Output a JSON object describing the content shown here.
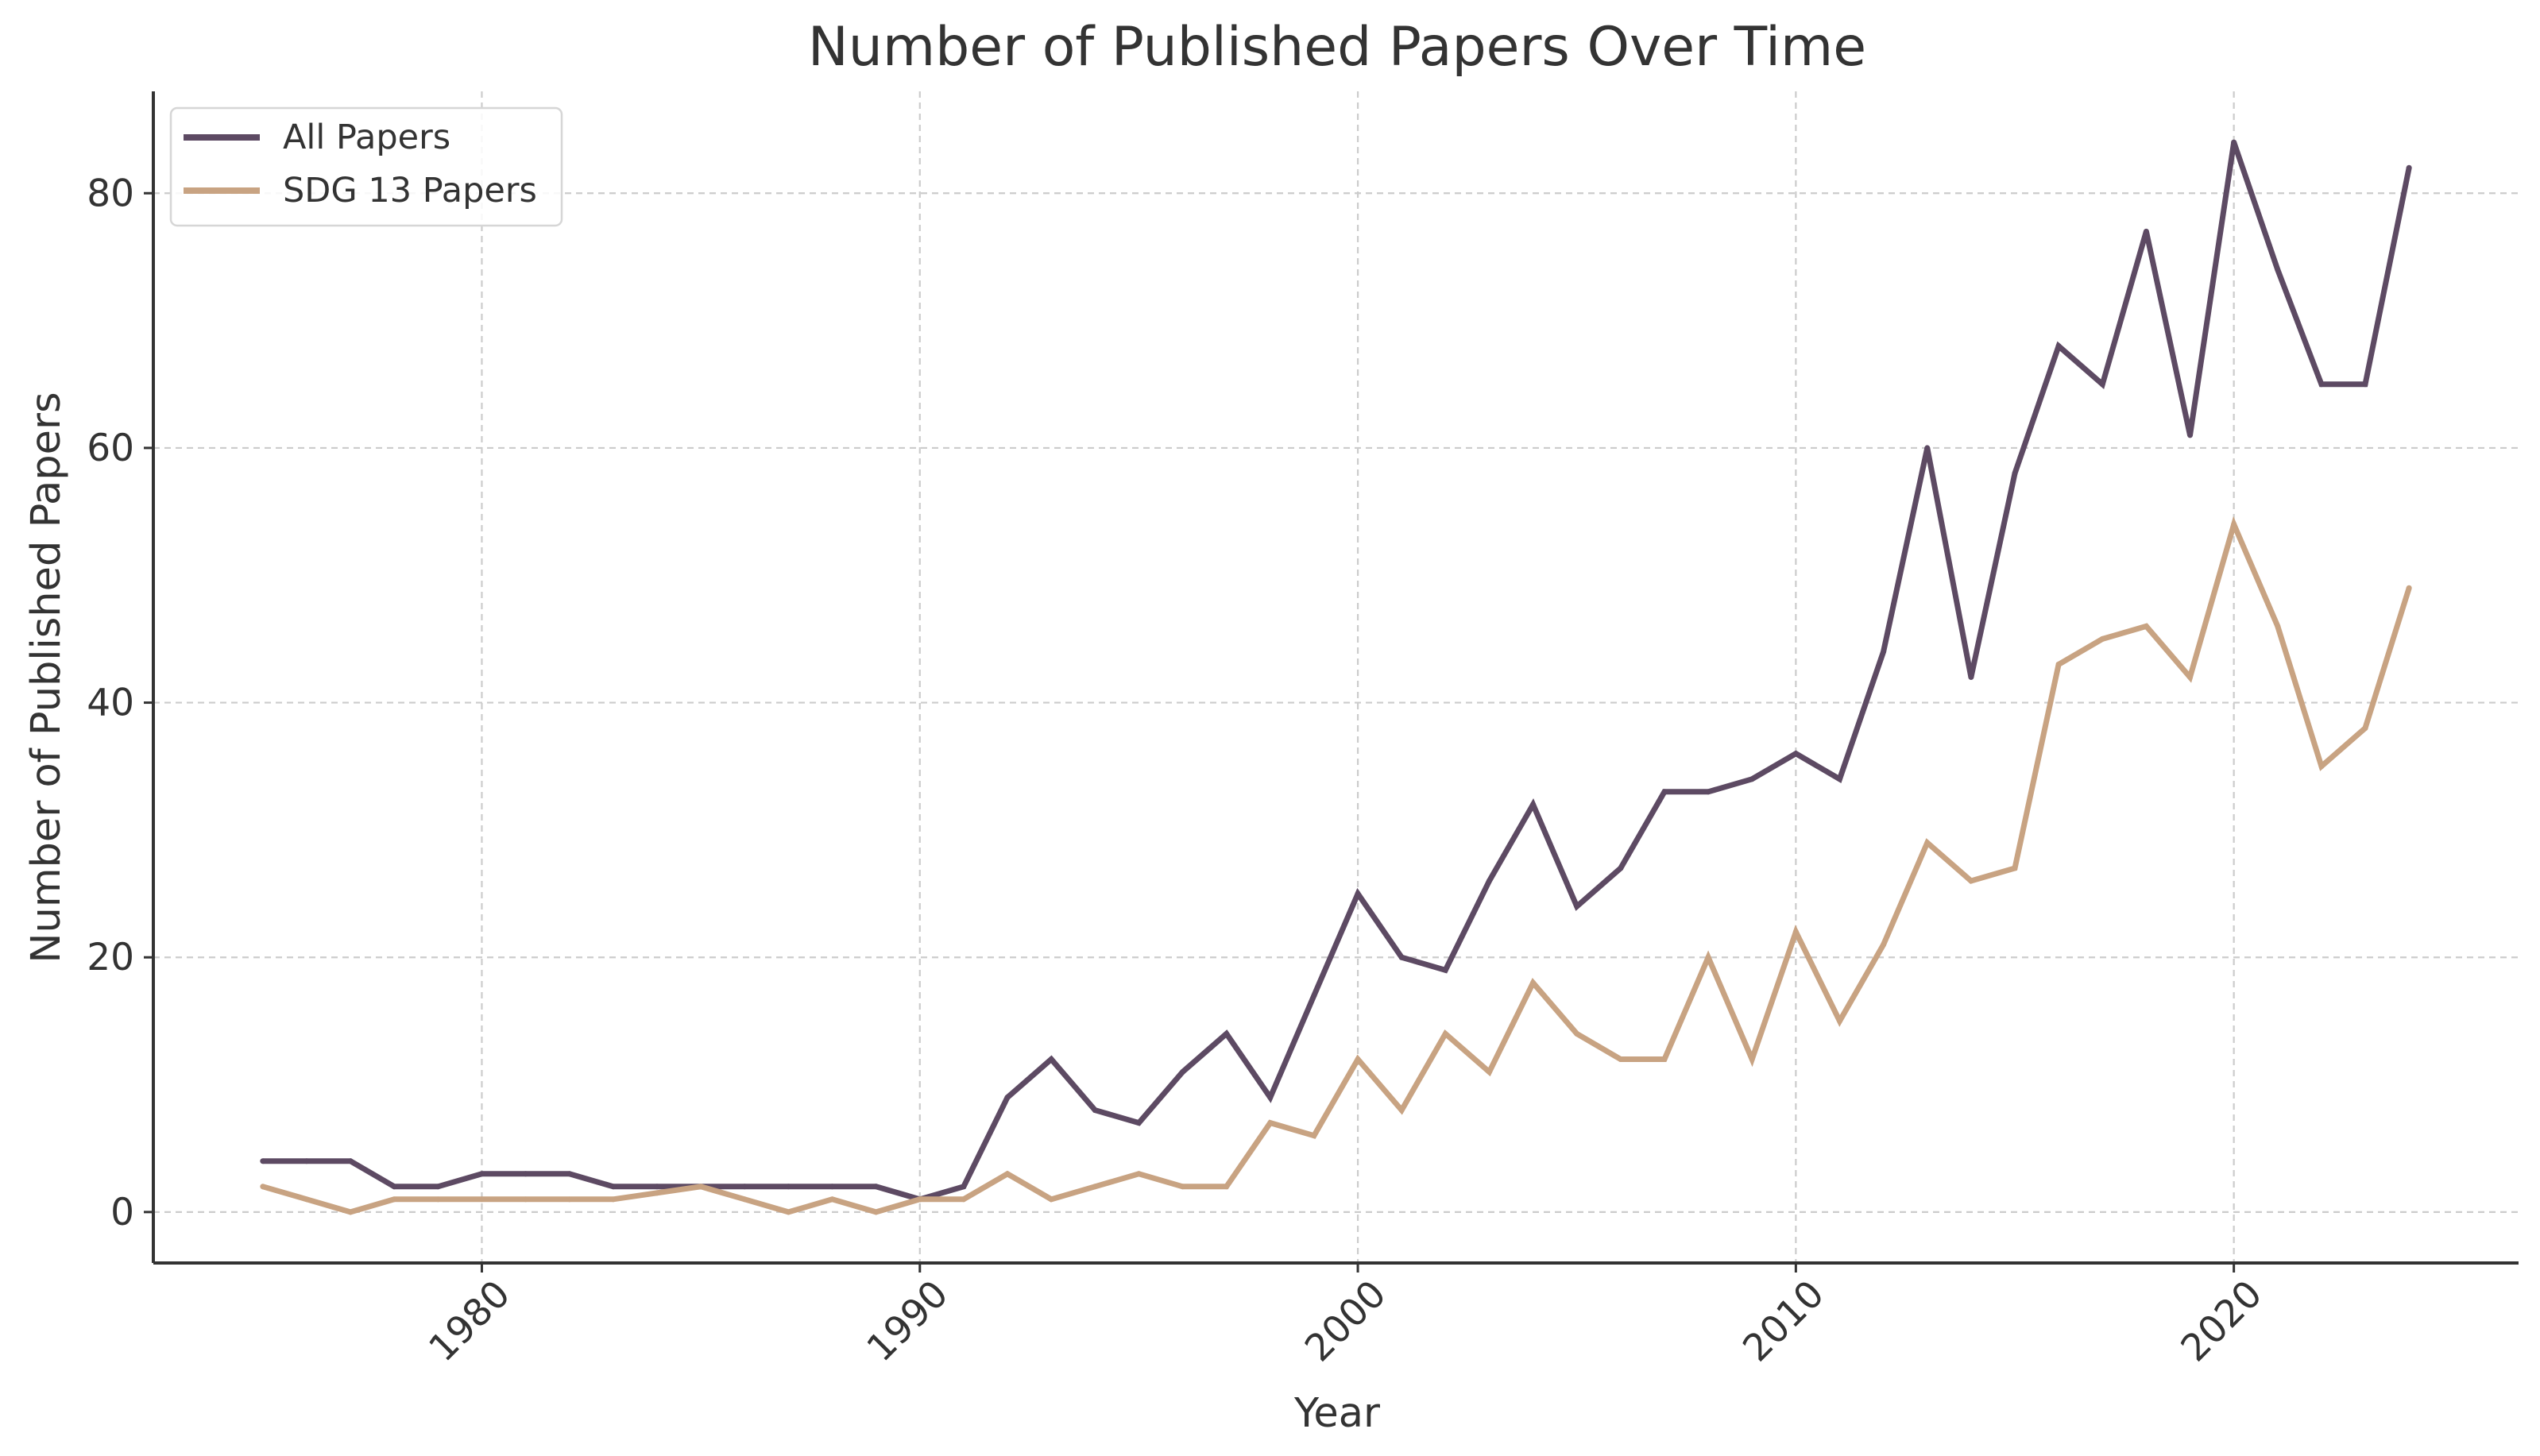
{
  "chart_data": {
    "type": "line",
    "title": "Number of Published Papers Over Time",
    "xlabel": "Year",
    "ylabel": "Number of Published Papers",
    "xlim": [
      1972.5,
      2026.5
    ],
    "ylim": [
      -4,
      88
    ],
    "xticks": [
      1980,
      1990,
      2000,
      2010,
      2020
    ],
    "yticks": [
      0,
      20,
      40,
      60,
      80
    ],
    "grid": true,
    "legend_position": "top-left",
    "x": [
      1975,
      1976,
      1977,
      1978,
      1979,
      1980,
      1981,
      1982,
      1983,
      1984,
      1985,
      1986,
      1987,
      1988,
      1989,
      1990,
      1991,
      1992,
      1993,
      1994,
      1995,
      1996,
      1997,
      1998,
      1999,
      2000,
      2001,
      2002,
      2003,
      2004,
      2005,
      2006,
      2007,
      2008,
      2009,
      2010,
      2011,
      2012,
      2013,
      2014,
      2015,
      2016,
      2017,
      2018,
      2019,
      2020,
      2021,
      2022,
      2023,
      2024
    ],
    "series": [
      {
        "name": "All Papers",
        "color": "#5d4a63",
        "values": [
          4,
          4,
          4,
          2,
          2,
          3,
          3,
          3,
          2,
          2,
          2,
          2,
          2,
          2,
          2,
          1,
          2,
          9,
          12,
          8,
          7,
          11,
          14,
          9,
          17,
          25,
          20,
          19,
          26,
          32,
          24,
          27,
          33,
          33,
          34,
          36,
          34,
          44,
          60,
          42,
          58,
          68,
          65,
          77,
          61,
          84,
          74,
          65,
          65,
          82
        ]
      },
      {
        "name": "SDG 13 Papers",
        "color": "#c8a382",
        "values": [
          2,
          1,
          0,
          1,
          1,
          1,
          1,
          1,
          1,
          1.5,
          2,
          1,
          0,
          1,
          0,
          1,
          1,
          3,
          1,
          2,
          3,
          2,
          2,
          7,
          6,
          12,
          8,
          14,
          11,
          18,
          14,
          12,
          12,
          20,
          12,
          22,
          15,
          21,
          29,
          26,
          27,
          43,
          45,
          46,
          42,
          54,
          46,
          35,
          38,
          49
        ]
      }
    ]
  }
}
